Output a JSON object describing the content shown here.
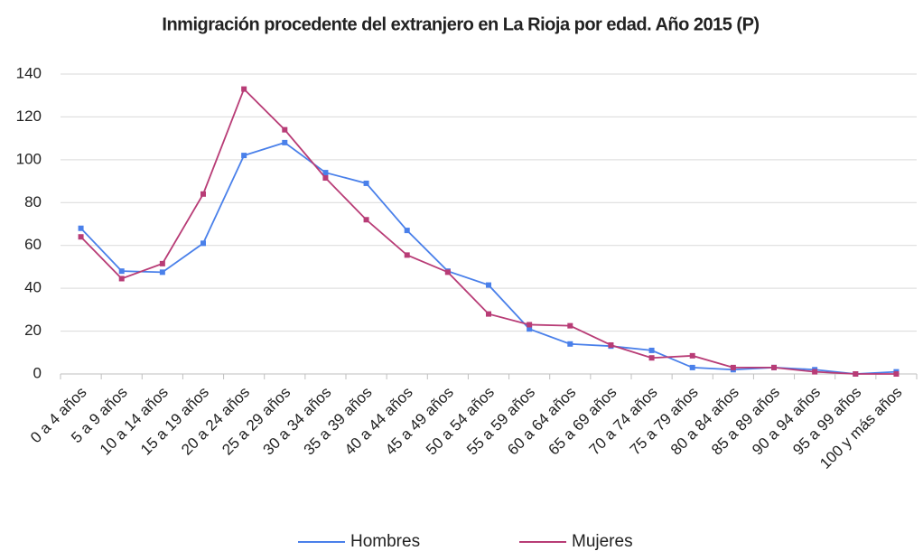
{
  "chart_data": {
    "type": "line",
    "title": "Inmigración procedente del extranjero en La Rioja por edad. Año 2015 (P)",
    "categories": [
      "0 a 4 años",
      "5 a 9 años",
      "10 a 14 años",
      "15 a 19 años",
      "20 a 24 años",
      "25 a 29 años",
      "30 a 34 años",
      "35 a 39 años",
      "40 a 44 años",
      "45 a 49 años",
      "50 a 54 años",
      "55 a 59 años",
      "60 a 64 años",
      "65 a 69 años",
      "70 a 74 años",
      "75 a 79 años",
      "80 a 84 años",
      "85 a 89 años",
      "90 a 94 años",
      "95 a 99 años",
      "100 y más años"
    ],
    "series": [
      {
        "name": "Hombres",
        "color": "#4a80ea",
        "values": [
          68,
          48,
          47.5,
          61,
          102,
          108,
          94,
          89,
          67,
          48,
          41.5,
          21,
          14,
          13,
          11,
          3,
          2,
          3,
          2,
          0,
          1
        ]
      },
      {
        "name": "Mujeres",
        "color": "#b83c76",
        "values": [
          64,
          44.5,
          51.5,
          84,
          133,
          114,
          91.5,
          72,
          55.5,
          47.5,
          28,
          23,
          22.5,
          13.5,
          7.5,
          8.5,
          3,
          3,
          1,
          0,
          0
        ]
      }
    ],
    "ylim": [
      0,
      140
    ],
    "yticks": [
      0,
      20,
      40,
      60,
      80,
      100,
      120,
      140
    ],
    "grid": true,
    "legend": "bottom"
  }
}
